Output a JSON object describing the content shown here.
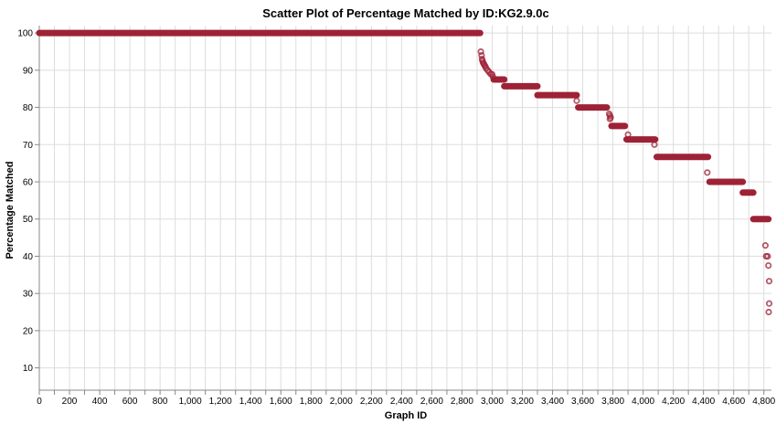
{
  "chart_data": {
    "type": "scatter",
    "title": "Scatter Plot of Percentage Matched by ID:KG2.9.0c",
    "xlabel": "Graph ID",
    "ylabel": "Percentage Matched",
    "xlim": [
      0,
      4850
    ],
    "ylim": [
      4,
      102
    ],
    "x_ticks": [
      0,
      200,
      400,
      600,
      800,
      1000,
      1200,
      1400,
      1600,
      1800,
      2000,
      2200,
      2400,
      2600,
      2800,
      3000,
      3200,
      3400,
      3600,
      3800,
      4000,
      4200,
      4400,
      4600,
      4800
    ],
    "x_tick_labels": [
      "0",
      "200",
      "400",
      "600",
      "800",
      "1,000",
      "1,200",
      "1,400",
      "1,600",
      "1,800",
      "2,000",
      "2,200",
      "2,400",
      "2,600",
      "2,800",
      "3,000",
      "3,200",
      "3,400",
      "3,600",
      "3,800",
      "4,000",
      "4,200",
      "4,400",
      "4,600",
      "4,800"
    ],
    "y_ticks": [
      10,
      20,
      30,
      40,
      50,
      60,
      70,
      80,
      90,
      100
    ],
    "grid": true,
    "marker_color": "#9e2236",
    "runs": [
      {
        "x_start": 0,
        "x_end": 2920,
        "y": 100
      },
      {
        "x_start": 3010,
        "x_end": 3080,
        "y": 87.5
      },
      {
        "x_start": 3080,
        "x_end": 3300,
        "y": 85.7
      },
      {
        "x_start": 3300,
        "x_end": 3560,
        "y": 83.3
      },
      {
        "x_start": 3570,
        "x_end": 3760,
        "y": 80
      },
      {
        "x_start": 3790,
        "x_end": 3880,
        "y": 75
      },
      {
        "x_start": 3890,
        "x_end": 4080,
        "y": 71.4
      },
      {
        "x_start": 4090,
        "x_end": 4430,
        "y": 66.7
      },
      {
        "x_start": 4440,
        "x_end": 4660,
        "y": 60
      },
      {
        "x_start": 4660,
        "x_end": 4730,
        "y": 57.1
      },
      {
        "x_start": 4730,
        "x_end": 4830,
        "y": 50
      }
    ],
    "points": [
      {
        "x": 2925,
        "y": 95
      },
      {
        "x": 2930,
        "y": 94
      },
      {
        "x": 2933,
        "y": 93
      },
      {
        "x": 2936,
        "y": 92.5
      },
      {
        "x": 2940,
        "y": 92
      },
      {
        "x": 2945,
        "y": 91.7
      },
      {
        "x": 2950,
        "y": 91.3
      },
      {
        "x": 2955,
        "y": 91
      },
      {
        "x": 2960,
        "y": 90.5
      },
      {
        "x": 2970,
        "y": 90
      },
      {
        "x": 2980,
        "y": 89.5
      },
      {
        "x": 2990,
        "y": 89
      },
      {
        "x": 3000,
        "y": 88.9
      },
      {
        "x": 3005,
        "y": 88.2
      },
      {
        "x": 3560,
        "y": 81.8
      },
      {
        "x": 3775,
        "y": 78.3
      },
      {
        "x": 3780,
        "y": 77.8
      },
      {
        "x": 3785,
        "y": 77.3
      },
      {
        "x": 3780,
        "y": 76.9
      },
      {
        "x": 3900,
        "y": 72.7
      },
      {
        "x": 4075,
        "y": 70
      },
      {
        "x": 4425,
        "y": 62.5
      },
      {
        "x": 4810,
        "y": 42.9
      },
      {
        "x": 4815,
        "y": 40
      },
      {
        "x": 4825,
        "y": 40
      },
      {
        "x": 4830,
        "y": 37.5
      },
      {
        "x": 4835,
        "y": 33.3
      },
      {
        "x": 4835,
        "y": 27.3
      },
      {
        "x": 4832,
        "y": 25
      }
    ]
  }
}
